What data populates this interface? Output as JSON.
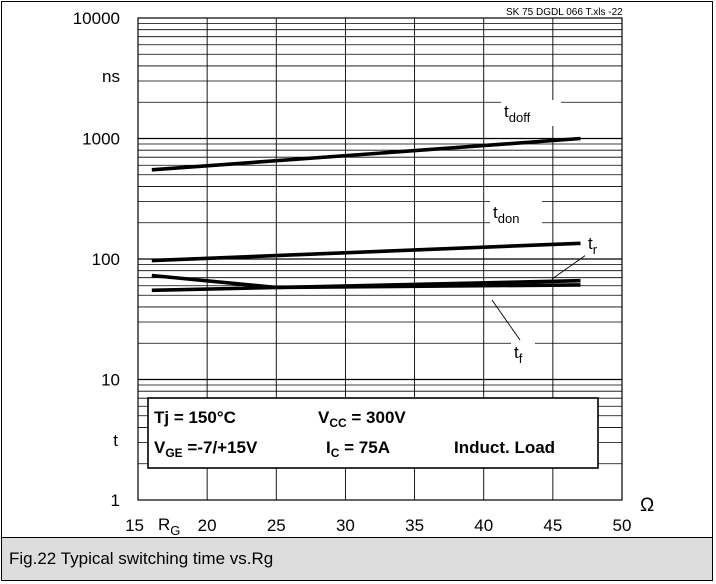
{
  "chart_data": {
    "type": "line",
    "source_tag": "SK 75 DGDL 066 T.xls   -22",
    "x_tick_labels": [
      "15",
      "20",
      "25",
      "30",
      "35",
      "40",
      "45",
      "50"
    ],
    "y_tick_labels": [
      {
        "value": 10000,
        "label": "10000"
      },
      {
        "value": 1000,
        "label": "1000"
      },
      {
        "value": 100,
        "label": "100"
      },
      {
        "value": 10,
        "label": "10"
      },
      {
        "value": 1,
        "label": "1"
      }
    ],
    "y_unit": "ns",
    "y_symbol": "t",
    "x_symbol": "R",
    "x_symbol_sub": "G",
    "x_unit": "Ω",
    "xlim": [
      15,
      50
    ],
    "ylim": [
      1,
      10000
    ],
    "yscale": "log",
    "grid": true,
    "series": [
      {
        "name": "t",
        "sub": "doff",
        "x": [
          16,
          47
        ],
        "y": [
          550,
          1000
        ]
      },
      {
        "name": "t",
        "sub": "don",
        "x": [
          16,
          47
        ],
        "y": [
          97,
          135
        ]
      },
      {
        "name": "t",
        "sub": "r",
        "x": [
          16,
          47
        ],
        "y": [
          55,
          66
        ]
      },
      {
        "name": "t",
        "sub": "f",
        "x": [
          16,
          25,
          47
        ],
        "y": [
          73,
          58,
          61
        ]
      }
    ],
    "conditions": {
      "tj": "Tj = 150°C",
      "vcc_pre": "V",
      "vcc_sub": "CC",
      "vcc_post": " = 300V",
      "vge_pre": "V",
      "vge_sub": "GE",
      "vge_post": " =-7/+15V",
      "ic_pre": "I",
      "ic_sub": "C",
      "ic_post": "  = 75A",
      "load": "Induct. Load"
    }
  },
  "caption": "Fig.22 Typical switching time vs.Rg"
}
